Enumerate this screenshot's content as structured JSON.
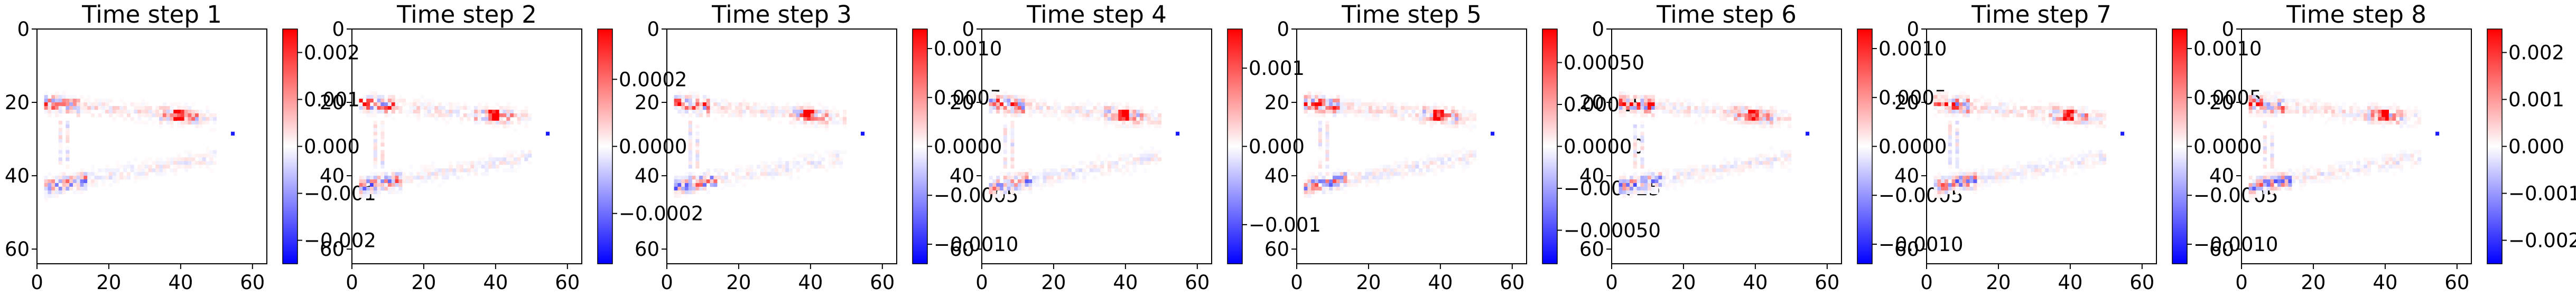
{
  "chart_data": {
    "type": "heatmap",
    "colormap": "bwr",
    "grid": false,
    "colorbar": "right",
    "xlim": [
      0,
      64
    ],
    "ylim": [
      64,
      0
    ],
    "xticks": [
      "0",
      "20",
      "40",
      "60"
    ],
    "yticks": [
      "0",
      "20",
      "40",
      "60"
    ],
    "panels": [
      {
        "title": "Time step 1",
        "vmin": -0.0025,
        "vmax": 0.0025,
        "cbar_ticks": [
          {
            "v": 0.002,
            "label": "0.002"
          },
          {
            "v": 0.001,
            "label": "0.001"
          },
          {
            "v": 0.0,
            "label": "0.000"
          },
          {
            "v": -0.001,
            "label": "−0.001"
          },
          {
            "v": -0.002,
            "label": "−0.002"
          }
        ]
      },
      {
        "title": "Time step 2",
        "vmin": -0.00035,
        "vmax": 0.00035,
        "cbar_ticks": [
          {
            "v": 0.0002,
            "label": "0.0002"
          },
          {
            "v": 0.0,
            "label": "0.0000"
          },
          {
            "v": -0.0002,
            "label": "−0.0002"
          }
        ]
      },
      {
        "title": "Time step 3",
        "vmin": -0.0012,
        "vmax": 0.0012,
        "cbar_ticks": [
          {
            "v": 0.001,
            "label": "0.0010"
          },
          {
            "v": 0.0005,
            "label": "0.0005"
          },
          {
            "v": 0.0,
            "label": "0.0000"
          },
          {
            "v": -0.0005,
            "label": "−0.0005"
          },
          {
            "v": -0.001,
            "label": "−0.0010"
          }
        ]
      },
      {
        "title": "Time step 4",
        "vmin": -0.0015,
        "vmax": 0.0015,
        "cbar_ticks": [
          {
            "v": 0.001,
            "label": "0.001"
          },
          {
            "v": 0.0,
            "label": "0.000"
          },
          {
            "v": -0.001,
            "label": "−0.001"
          }
        ]
      },
      {
        "title": "Time step 5",
        "vmin": -0.0007,
        "vmax": 0.0007,
        "cbar_ticks": [
          {
            "v": 0.0005,
            "label": "0.00050"
          },
          {
            "v": 0.00025,
            "label": "0.00025"
          },
          {
            "v": 0.0,
            "label": "0.00000"
          },
          {
            "v": -0.00025,
            "label": "−0.00025"
          },
          {
            "v": -0.0005,
            "label": "−0.00050"
          }
        ]
      },
      {
        "title": "Time step 6",
        "vmin": -0.0012,
        "vmax": 0.0012,
        "cbar_ticks": [
          {
            "v": 0.001,
            "label": "0.0010"
          },
          {
            "v": 0.0005,
            "label": "0.0005"
          },
          {
            "v": 0.0,
            "label": "0.0000"
          },
          {
            "v": -0.0005,
            "label": "−0.0005"
          },
          {
            "v": -0.001,
            "label": "−0.0010"
          }
        ]
      },
      {
        "title": "Time step 7",
        "vmin": -0.0012,
        "vmax": 0.0012,
        "cbar_ticks": [
          {
            "v": 0.001,
            "label": "0.0010"
          },
          {
            "v": 0.0005,
            "label": "0.0005"
          },
          {
            "v": 0.0,
            "label": "0.0000"
          },
          {
            "v": -0.0005,
            "label": "−0.0005"
          },
          {
            "v": -0.001,
            "label": "−0.0010"
          }
        ]
      },
      {
        "title": "Time step 8",
        "vmin": -0.0025,
        "vmax": 0.0025,
        "cbar_ticks": [
          {
            "v": 0.002,
            "label": "0.002"
          },
          {
            "v": 0.001,
            "label": "0.001"
          },
          {
            "v": 0.0,
            "label": "0.000"
          },
          {
            "v": -0.001,
            "label": "−0.001"
          },
          {
            "v": -0.002,
            "label": "−0.002"
          }
        ]
      }
    ]
  }
}
